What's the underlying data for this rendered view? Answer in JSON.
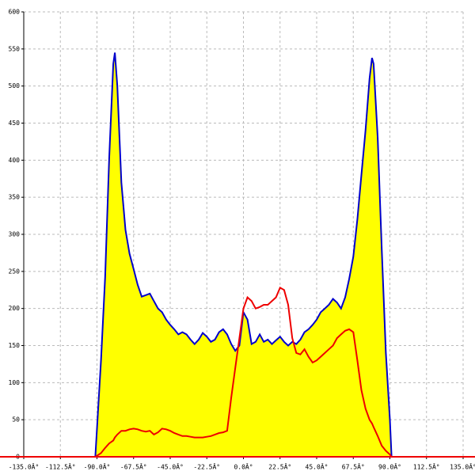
{
  "chart_data": {
    "type": "area",
    "x": [
      -91,
      -87.5,
      -85,
      -82.5,
      -80,
      -79,
      -77.5,
      -75,
      -72.5,
      -70,
      -67.5,
      -65,
      -62.5,
      -60,
      -57.5,
      -55,
      -52.5,
      -50,
      -47.5,
      -45,
      -42.5,
      -40,
      -37.5,
      -35,
      -32.5,
      -30,
      -27.5,
      -25,
      -22.5,
      -20,
      -17.5,
      -15,
      -12.5,
      -10,
      -7.5,
      -5,
      -2.5,
      0,
      2.5,
      5,
      7.5,
      10,
      12.5,
      15,
      17.5,
      20,
      22.5,
      25,
      27.5,
      30,
      32.5,
      35,
      37.5,
      40,
      42.5,
      45,
      47.5,
      50,
      52.5,
      55,
      57.5,
      60,
      62.5,
      65,
      67.5,
      70,
      72.5,
      75,
      77.5,
      79,
      80,
      82.5,
      85,
      87.5,
      90,
      91
    ],
    "series": [
      {
        "color": "#0000cc",
        "fill": "#ffff00",
        "values": [
          0,
          130,
          242,
          402,
          530,
          545,
          500,
          370,
          306,
          274,
          253,
          232,
          216,
          218,
          220,
          210,
          200,
          195,
          185,
          178,
          172,
          165,
          168,
          165,
          158,
          152,
          158,
          167,
          162,
          155,
          158,
          168,
          172,
          165,
          152,
          143,
          150,
          195,
          185,
          152,
          155,
          165,
          155,
          158,
          152,
          157,
          162,
          155,
          150,
          155,
          152,
          158,
          168,
          172,
          178,
          185,
          195,
          200,
          205,
          213,
          208,
          200,
          215,
          240,
          270,
          320,
          380,
          440,
          510,
          538,
          530,
          430,
          280,
          140,
          50,
          0
        ]
      },
      {
        "color": "#ee0000",
        "values": [
          0,
          5,
          12,
          18,
          22,
          26,
          30,
          35,
          35,
          37,
          38,
          37,
          35,
          34,
          35,
          30,
          33,
          38,
          37,
          35,
          32,
          30,
          28,
          28,
          27,
          26,
          26,
          26,
          27,
          28,
          30,
          32,
          33,
          35,
          80,
          120,
          160,
          200,
          215,
          210,
          200,
          202,
          205,
          205,
          210,
          215,
          228,
          225,
          205,
          160,
          140,
          138,
          145,
          135,
          127,
          130,
          135,
          140,
          145,
          150,
          160,
          165,
          170,
          172,
          168,
          130,
          90,
          65,
          50,
          45,
          40,
          28,
          15,
          8,
          3,
          0
        ]
      }
    ],
    "xlim": [
      -135,
      135
    ],
    "ylim": [
      0,
      600
    ],
    "xticks": [
      {
        "value": -135,
        "label": "-135.0Â°"
      },
      {
        "value": -112.5,
        "label": "-112.5Â°"
      },
      {
        "value": -90,
        "label": "-90.0Â°"
      },
      {
        "value": -67.5,
        "label": "-67.5Â°"
      },
      {
        "value": -45,
        "label": "-45.0Â°"
      },
      {
        "value": -22.5,
        "label": "-22.5Â°"
      },
      {
        "value": 0,
        "label": "0.0Â°"
      },
      {
        "value": 22.5,
        "label": "22.5Â°"
      },
      {
        "value": 45,
        "label": "45.0Â°"
      },
      {
        "value": 67.5,
        "label": "67.5Â°"
      },
      {
        "value": 90,
        "label": "90.0Â°"
      },
      {
        "value": 112.5,
        "label": "112.5Â°"
      },
      {
        "value": 135,
        "label": "135.0Â°"
      }
    ],
    "yticks": [
      0,
      50,
      100,
      150,
      200,
      250,
      300,
      350,
      400,
      450,
      500,
      550,
      600
    ],
    "grid": true
  }
}
